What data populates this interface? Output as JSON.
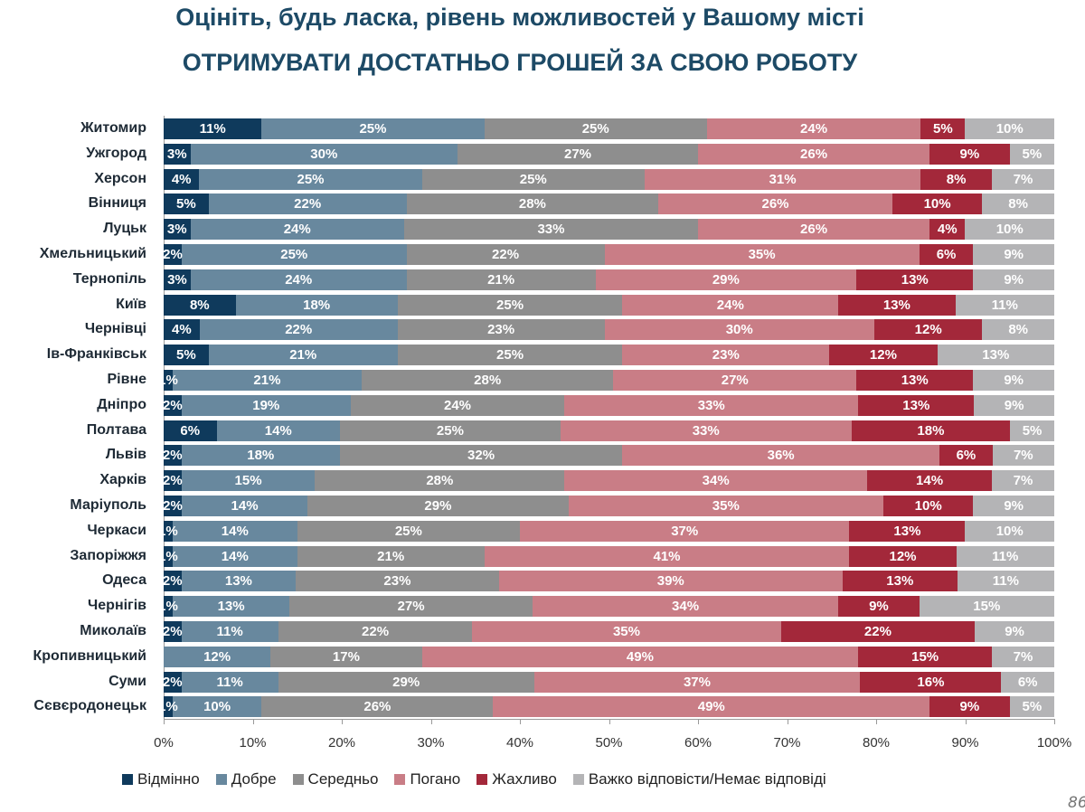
{
  "title_line1": "Оцініть, будь ласка, рівень можливостей у Вашому місті",
  "title_line2": "ОТРИМУВАТИ ДОСТАТНЬО ГРОШЕЙ ЗА СВОЮ РОБОТУ",
  "page_number": "86",
  "chart_data": {
    "type": "bar",
    "orientation": "horizontal",
    "stacked": true,
    "xlim": [
      0,
      100
    ],
    "x_ticks": [
      "0%",
      "10%",
      "20%",
      "30%",
      "40%",
      "50%",
      "60%",
      "70%",
      "80%",
      "90%",
      "100%"
    ],
    "legend_position": "bottom",
    "categories": [
      "Житомир",
      "Ужгород",
      "Херсон",
      "Вінниця",
      "Луцьк",
      "Хмельницький",
      "Тернопіль",
      "Київ",
      "Чернівці",
      "Ів-Франківськ",
      "Рівне",
      "Дніпро",
      "Полтава",
      "Львів",
      "Харків",
      "Маріуполь",
      "Черкаси",
      "Запоріжжя",
      "Одеса",
      "Чернігів",
      "Миколаїв",
      "Кропивницький",
      "Суми",
      "Сєвєродонецьк"
    ],
    "series": [
      {
        "name": "Відмінно",
        "color": "#0f3a5c",
        "values": [
          11,
          3,
          4,
          5,
          3,
          2,
          3,
          8,
          4,
          5,
          1,
          2,
          6,
          2,
          2,
          2,
          1,
          1,
          2,
          1,
          2,
          0,
          2,
          1
        ]
      },
      {
        "name": "Добре",
        "color": "#68889e",
        "values": [
          25,
          30,
          25,
          22,
          24,
          25,
          24,
          18,
          22,
          21,
          21,
          19,
          14,
          18,
          15,
          14,
          14,
          14,
          13,
          13,
          11,
          12,
          11,
          10
        ]
      },
      {
        "name": "Середньо",
        "color": "#8e8e8e",
        "values": [
          25,
          27,
          25,
          28,
          33,
          22,
          21,
          25,
          23,
          25,
          28,
          24,
          25,
          32,
          28,
          29,
          25,
          21,
          23,
          27,
          22,
          17,
          29,
          26
        ]
      },
      {
        "name": "Погано",
        "color": "#c97d86",
        "values": [
          24,
          26,
          31,
          26,
          26,
          35,
          29,
          24,
          30,
          23,
          27,
          33,
          33,
          36,
          34,
          35,
          37,
          41,
          39,
          34,
          35,
          49,
          37,
          49
        ]
      },
      {
        "name": "Жахливо",
        "color": "#a3283a",
        "values": [
          5,
          9,
          8,
          10,
          4,
          6,
          13,
          13,
          12,
          12,
          13,
          13,
          18,
          6,
          14,
          10,
          13,
          12,
          13,
          9,
          22,
          15,
          16,
          9
        ]
      },
      {
        "name": "Важко відповісти/Немає відповіді",
        "color": "#b4b4b6",
        "values": [
          10,
          5,
          7,
          8,
          10,
          9,
          9,
          11,
          8,
          13,
          9,
          9,
          5,
          7,
          7,
          9,
          10,
          11,
          11,
          15,
          9,
          7,
          6,
          5
        ]
      }
    ]
  }
}
